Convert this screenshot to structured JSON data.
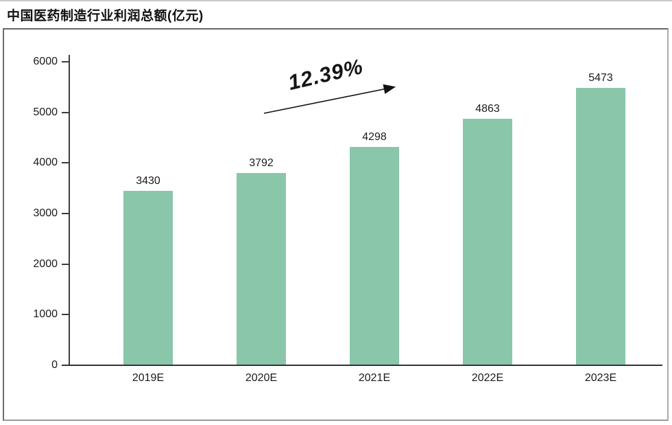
{
  "chart_data": {
    "type": "bar",
    "title": "中国医药制造行业利润总额(亿元)",
    "categories": [
      "2019E",
      "2020E",
      "2021E",
      "2022E",
      "2023E"
    ],
    "values": [
      3430,
      3792,
      4298,
      4863,
      5473
    ],
    "xlabel": "",
    "ylabel": "",
    "ylim": [
      0,
      6000
    ],
    "yticks": [
      0,
      1000,
      2000,
      3000,
      4000,
      5000,
      6000
    ],
    "grid": false,
    "legend": false,
    "bar_color": "#89c6aa",
    "annotation": "12.39%"
  }
}
